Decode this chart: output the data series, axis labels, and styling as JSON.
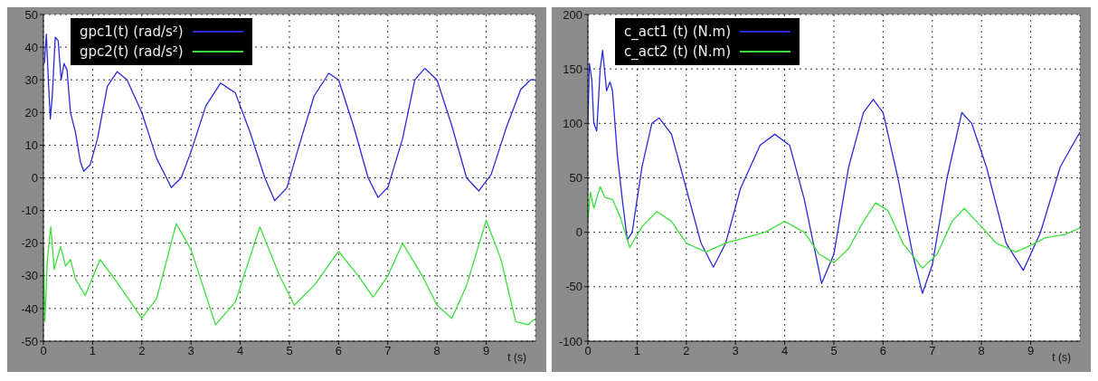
{
  "chart_data": [
    {
      "type": "line",
      "xlabel": "t (s)",
      "xlim": [
        0,
        10
      ],
      "xticks": [
        0,
        1,
        2,
        3,
        4,
        5,
        6,
        7,
        8,
        9
      ],
      "ylim": [
        -50,
        50
      ],
      "yticks": [
        -50,
        -40,
        -30,
        -20,
        -10,
        0,
        10,
        20,
        30,
        40,
        50
      ],
      "grid": true,
      "legend": "top left",
      "line_style": "solid",
      "marker": "none",
      "series": [
        {
          "name": "gpc1(t) (rad/s²)",
          "color": "#2a2ad8",
          "x": [
            0.02,
            0.06,
            0.1,
            0.14,
            0.18,
            0.24,
            0.3,
            0.36,
            0.42,
            0.48,
            0.55,
            0.65,
            0.75,
            0.82,
            0.95,
            1.1,
            1.3,
            1.5,
            1.7,
            2.0,
            2.3,
            2.6,
            2.8,
            3.0,
            3.3,
            3.6,
            3.9,
            4.2,
            4.5,
            4.7,
            4.95,
            5.2,
            5.5,
            5.8,
            6.0,
            6.3,
            6.6,
            6.8,
            7.0,
            7.3,
            7.55,
            7.75,
            8.0,
            8.3,
            8.6,
            8.85,
            9.1,
            9.4,
            9.7,
            9.9,
            10
          ],
          "values": [
            35,
            44,
            30,
            18,
            25,
            43,
            42,
            30,
            35,
            33,
            20,
            14,
            5,
            2,
            4,
            12,
            28,
            32.5,
            30,
            20,
            6,
            -3,
            0,
            8,
            22,
            29,
            26,
            14,
            0,
            -7,
            -3,
            10,
            25,
            32,
            30,
            16,
            0,
            -6,
            -3,
            12,
            30,
            33.5,
            30,
            16,
            0,
            -4,
            1,
            15,
            27,
            30,
            30
          ]
        },
        {
          "name": "gpc2(t) (rad/s²)",
          "color": "#3ee03e",
          "x": [
            0,
            0.03,
            0.08,
            0.15,
            0.22,
            0.35,
            0.45,
            0.55,
            0.65,
            0.85,
            1.15,
            1.5,
            2.0,
            2.3,
            2.7,
            3.0,
            3.5,
            3.9,
            4.4,
            4.8,
            5.1,
            5.5,
            6.0,
            6.4,
            6.7,
            7.0,
            7.3,
            7.7,
            8.0,
            8.3,
            8.6,
            9.0,
            9.3,
            9.6,
            9.85,
            10
          ],
          "values": [
            -22,
            -44,
            -25,
            -15,
            -28,
            -21,
            -27,
            -25,
            -31,
            -36,
            -25,
            -32,
            -43,
            -37,
            -14,
            -22,
            -45,
            -38,
            -15,
            -30,
            -39,
            -33,
            -22.5,
            -30,
            -36.5,
            -30,
            -20,
            -30,
            -39,
            -43,
            -33,
            -13,
            -25,
            -44,
            -45,
            -43
          ]
        }
      ]
    },
    {
      "type": "line",
      "xlabel": "t (s)",
      "xlim": [
        0,
        10
      ],
      "xticks": [
        0,
        1,
        2,
        3,
        4,
        5,
        6,
        7,
        8,
        9
      ],
      "ylim": [
        -100,
        200
      ],
      "yticks": [
        -100,
        -50,
        0,
        50,
        100,
        150,
        200
      ],
      "grid": true,
      "legend": "top left",
      "line_style": "solid",
      "marker": "none",
      "series": [
        {
          "name": "c_act1 (t) (N.m)",
          "color": "#2a2ad8",
          "x": [
            0,
            0.03,
            0.08,
            0.12,
            0.18,
            0.25,
            0.3,
            0.38,
            0.45,
            0.5,
            0.6,
            0.7,
            0.8,
            0.9,
            1.1,
            1.3,
            1.45,
            1.7,
            2.0,
            2.3,
            2.55,
            2.8,
            3.1,
            3.5,
            3.8,
            4.1,
            4.4,
            4.75,
            5.0,
            5.3,
            5.6,
            5.8,
            6.0,
            6.3,
            6.6,
            6.8,
            7.0,
            7.3,
            7.6,
            7.8,
            8.1,
            8.5,
            8.85,
            9.2,
            9.6,
            10
          ],
          "values": [
            100,
            155,
            140,
            100,
            93,
            150,
            167,
            130,
            138,
            130,
            70,
            30,
            -7,
            0,
            60,
            100,
            105,
            90,
            40,
            -10,
            -32,
            -10,
            40,
            80,
            90,
            80,
            30,
            -47,
            -20,
            60,
            110,
            122,
            110,
            50,
            -20,
            -56,
            -30,
            50,
            110,
            100,
            60,
            -10,
            -35,
            0,
            60,
            92
          ]
        },
        {
          "name": "c_act2 (t) (N.m)",
          "color": "#3ee03e",
          "x": [
            0,
            0.05,
            0.12,
            0.25,
            0.35,
            0.5,
            0.65,
            0.85,
            1.1,
            1.4,
            1.7,
            2.0,
            2.4,
            2.8,
            3.2,
            3.6,
            4.0,
            4.4,
            4.7,
            5.0,
            5.3,
            5.6,
            5.85,
            6.1,
            6.4,
            6.8,
            7.1,
            7.4,
            7.65,
            8.0,
            8.3,
            8.7,
            9.0,
            9.3,
            9.7,
            10
          ],
          "values": [
            10,
            37,
            22,
            42,
            32,
            30,
            15,
            -14,
            5,
            19,
            10,
            -10,
            -18,
            -10,
            -5,
            0,
            10,
            0,
            -20,
            -28,
            -15,
            10,
            27,
            20,
            -10,
            -33,
            -20,
            10,
            22,
            5,
            -10,
            -18,
            -12,
            -5,
            -2,
            4
          ]
        }
      ]
    }
  ]
}
